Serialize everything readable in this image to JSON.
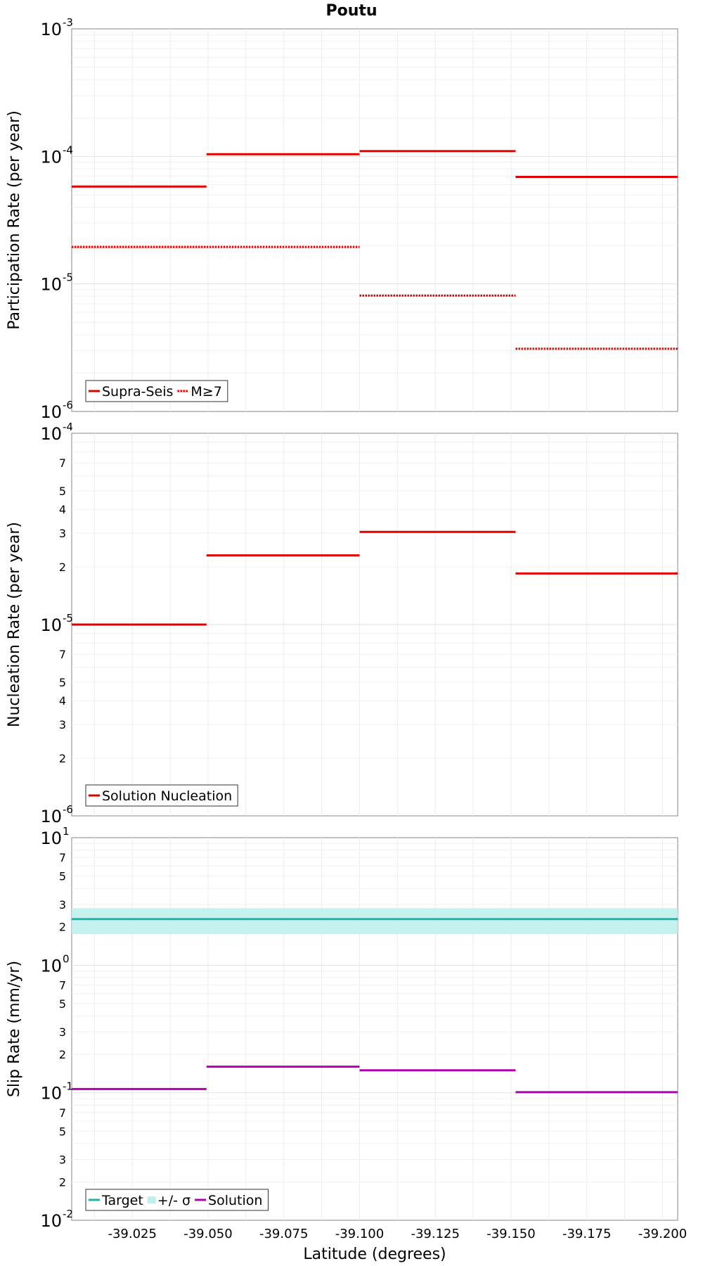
{
  "chart_data": [
    {
      "type": "line",
      "title": "Poutu",
      "ylabel": "Participation Rate (per year)",
      "yscale": "log",
      "ylim": [
        1e-06,
        0.001
      ],
      "xlim": [
        -39.005,
        -39.205
      ],
      "x_ticks": [
        -39.025,
        -39.05,
        -39.075,
        -39.1,
        -39.125,
        -39.15,
        -39.175,
        -39.2
      ],
      "grid": true,
      "legend_position": "bottom-left",
      "series": [
        {
          "name": "Supra-Seis",
          "style": "solid",
          "color": "#e00000",
          "segments": [
            {
              "x": [
                -39.005,
                -39.0495
              ],
              "y": 5.8e-05
            },
            {
              "x": [
                -39.0495,
                -39.1
              ],
              "y": 0.000104
            },
            {
              "x": [
                -39.1,
                -39.1515
              ],
              "y": 0.00011
            },
            {
              "x": [
                -39.1515,
                -39.205
              ],
              "y": 6.9e-05
            }
          ]
        },
        {
          "name": "M≥7",
          "style": "dotted",
          "color": "#e00000",
          "segments": [
            {
              "x": [
                -39.005,
                -39.0495
              ],
              "y": 1.95e-05
            },
            {
              "x": [
                -39.0495,
                -39.1
              ],
              "y": 1.95e-05
            },
            {
              "x": [
                -39.1,
                -39.1515
              ],
              "y": 8.1e-06
            },
            {
              "x": [
                -39.1515,
                -39.205
              ],
              "y": 3.1e-06
            }
          ]
        }
      ]
    },
    {
      "type": "line",
      "ylabel": "Nucleation Rate (per year)",
      "yscale": "log",
      "ylim": [
        1e-06,
        0.0001
      ],
      "xlim": [
        -39.005,
        -39.205
      ],
      "x_ticks": [
        -39.025,
        -39.05,
        -39.075,
        -39.1,
        -39.125,
        -39.15,
        -39.175,
        -39.2
      ],
      "grid": true,
      "legend_position": "bottom-left",
      "series": [
        {
          "name": "Solution Nucleation",
          "style": "solid",
          "color": "#e00000",
          "segments": [
            {
              "x": [
                -39.005,
                -39.0495
              ],
              "y": 1e-05
            },
            {
              "x": [
                -39.0495,
                -39.1
              ],
              "y": 2.3e-05
            },
            {
              "x": [
                -39.1,
                -39.1515
              ],
              "y": 3.05e-05
            },
            {
              "x": [
                -39.1515,
                -39.205
              ],
              "y": 1.85e-05
            }
          ]
        }
      ]
    },
    {
      "type": "line",
      "ylabel": "Slip Rate (mm/yr)",
      "xlabel": "Latitude (degrees)",
      "yscale": "log",
      "ylim": [
        0.01,
        10
      ],
      "xlim": [
        -39.005,
        -39.205
      ],
      "x_ticks": [
        -39.025,
        -39.05,
        -39.075,
        -39.1,
        -39.125,
        -39.15,
        -39.175,
        -39.2
      ],
      "x_tick_labels": [
        "-39.025",
        "-39.050",
        "-39.075",
        "-39.100",
        "-39.125",
        "-39.150",
        "-39.175",
        "-39.200"
      ],
      "grid": true,
      "legend_position": "bottom-left",
      "series": [
        {
          "name": "Target",
          "style": "solid",
          "color": "#20b2aa",
          "segments": [
            {
              "x": [
                -39.005,
                -39.205
              ],
              "y": 2.3
            }
          ]
        },
        {
          "name": "+/- σ",
          "style": "band",
          "color": "#bff0ec",
          "segments": [
            {
              "x": [
                -39.005,
                -39.205
              ],
              "y_low": 1.75,
              "y_high": 2.8
            }
          ]
        },
        {
          "name": "Solution",
          "style": "solid",
          "color": "#b000b0",
          "segments": [
            {
              "x": [
                -39.005,
                -39.0495
              ],
              "y": 0.107
            },
            {
              "x": [
                -39.0495,
                -39.1
              ],
              "y": 0.16
            },
            {
              "x": [
                -39.1,
                -39.1515
              ],
              "y": 0.15
            },
            {
              "x": [
                -39.1515,
                -39.205
              ],
              "y": 0.101
            }
          ]
        }
      ]
    }
  ]
}
